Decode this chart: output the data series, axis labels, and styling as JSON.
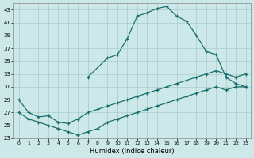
{
  "xlabel": "Humidex (Indice chaleur)",
  "bg_color": "#cde8e8",
  "line_color": "#1a6e6e",
  "grid_color": "#aacccc",
  "xlim": [
    -0.5,
    23.5
  ],
  "ylim": [
    23,
    44
  ],
  "xticks": [
    0,
    1,
    2,
    3,
    4,
    5,
    6,
    7,
    8,
    9,
    10,
    11,
    12,
    13,
    14,
    15,
    16,
    17,
    18,
    19,
    20,
    21,
    22,
    23
  ],
  "yticks": [
    23,
    25,
    27,
    29,
    31,
    33,
    35,
    37,
    39,
    41,
    43
  ],
  "curve1_x": [
    7,
    9,
    10,
    11,
    12,
    13,
    14,
    15,
    16,
    17,
    18,
    19,
    20,
    21,
    22,
    23
  ],
  "curve1_y": [
    32.5,
    35.5,
    36.0,
    38.5,
    42.0,
    42.5,
    43.2,
    43.5,
    42.0,
    41.2,
    39.0,
    36.5,
    36.0,
    32.5,
    31.5,
    31.0
  ],
  "curve2_x": [
    0,
    1,
    2,
    3,
    4,
    5,
    6,
    7,
    8,
    9,
    10,
    11,
    12,
    13,
    14,
    15,
    16,
    17,
    18,
    19,
    20,
    21,
    22,
    23
  ],
  "curve2_y": [
    29.0,
    27.0,
    26.3,
    26.5,
    25.5,
    25.3,
    26.0,
    27.0,
    27.5,
    28.0,
    28.5,
    29.0,
    29.5,
    30.0,
    30.5,
    31.0,
    31.5,
    32.0,
    32.5,
    33.0,
    33.5,
    33.0,
    32.5,
    33.0
  ],
  "curve3_x": [
    0,
    1,
    2,
    3,
    4,
    5,
    6,
    7,
    8,
    9,
    10,
    11,
    12,
    13,
    14,
    15,
    16,
    17,
    18,
    19,
    20,
    21,
    22,
    23
  ],
  "curve3_y": [
    27.0,
    26.0,
    25.5,
    25.0,
    24.5,
    24.0,
    23.5,
    24.0,
    24.5,
    25.5,
    26.0,
    26.5,
    27.0,
    27.5,
    28.0,
    28.5,
    29.0,
    29.5,
    30.0,
    30.5,
    31.0,
    30.5,
    31.0,
    31.0
  ]
}
